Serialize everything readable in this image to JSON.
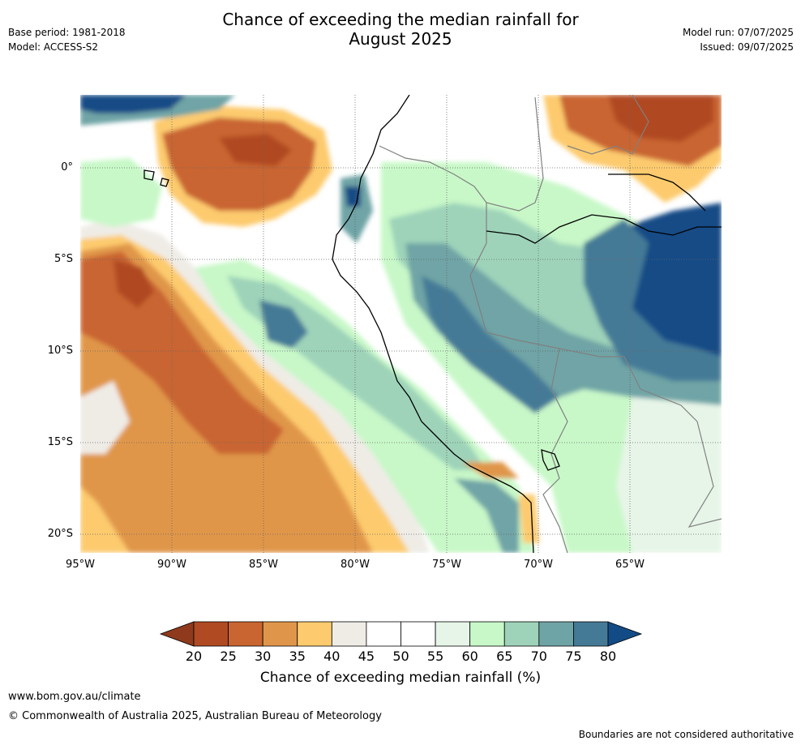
{
  "header": {
    "title_line1": "Chance of exceeding the median rainfall for",
    "title_line2": "August 2025",
    "base_period": "Base period: 1981-2018",
    "model": "Model: ACCESS-S2",
    "model_run": "Model run: 07/07/2025",
    "issued": "Issued: 09/07/2025"
  },
  "map": {
    "lat_labels": [
      "0°",
      "5°S",
      "10°S",
      "15°S",
      "20°S"
    ],
    "lon_labels": [
      "95°W",
      "90°W",
      "85°W",
      "80°W",
      "75°W",
      "70°W",
      "65°W"
    ],
    "lat_values": [
      0,
      -5,
      -10,
      -15,
      -20
    ],
    "lon_values": [
      -95,
      -90,
      -85,
      -80,
      -75,
      -70,
      -65
    ],
    "lon_range": [
      -95,
      -60
    ],
    "lat_range": [
      -21,
      4
    ]
  },
  "colorbar": {
    "ticks": [
      "20",
      "25",
      "30",
      "35",
      "40",
      "45",
      "50",
      "55",
      "60",
      "65",
      "70",
      "75",
      "80"
    ],
    "low_extend_color": "#8f3a1c",
    "high_extend_color": "#134b86",
    "bin_colors": [
      "#b04a22",
      "#c96530",
      "#e0964a",
      "#fdcb6e",
      "#efece6",
      "#ffffff",
      "#ffffff",
      "#e7f5e8",
      "#c8f8c8",
      "#9ed3b9",
      "#6fa4a6",
      "#457a97"
    ],
    "label": "Chance of exceeding median rainfall (%)"
  },
  "footer": {
    "url": "www.bom.gov.au/climate",
    "copyright": "© Commonwealth of Australia 2025, Australian Bureau of Meteorology",
    "disclaimer": "Boundaries are not considered authoritative"
  }
}
